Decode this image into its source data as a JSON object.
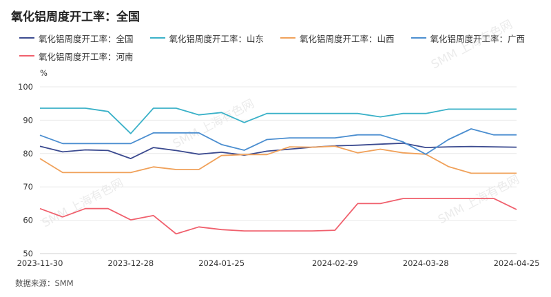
{
  "title": "氧化铝周度开工率：全国",
  "source": "数据来源：SMM",
  "watermark": "SMM 上海有色网",
  "chart_data": {
    "type": "line",
    "y_unit": "%",
    "ylim": [
      50,
      100
    ],
    "y_ticks": [
      50,
      60,
      70,
      80,
      90,
      100
    ],
    "grid": true,
    "legend_position": "top",
    "x": [
      "2023-11-30",
      "2023-12-07",
      "2023-12-14",
      "2023-12-21",
      "2023-12-28",
      "2024-01-04",
      "2024-01-11",
      "2024-01-18",
      "2024-01-25",
      "2024-02-01",
      "2024-02-08",
      "2024-02-15",
      "2024-02-22",
      "2024-02-29",
      "2024-03-07",
      "2024-03-14",
      "2024-03-21",
      "2024-03-28",
      "2024-04-04",
      "2024-04-11",
      "2024-04-18",
      "2024-04-25"
    ],
    "x_tick_labels": [
      "2023-11-30",
      "2023-12-28",
      "2024-01-25",
      "2024-02-29",
      "2024-03-28",
      "2024-04-25"
    ],
    "series": [
      {
        "name": "氧化铝周度开工率：全国",
        "color": "#3b4a8f",
        "values": [
          82.2,
          80.5,
          81.1,
          80.9,
          78.5,
          81.8,
          80.9,
          79.8,
          80.4,
          79.5,
          80.7,
          81.3,
          81.9,
          82.3,
          82.5,
          82.8,
          83.1,
          81.8,
          82.0,
          82.1,
          82.0,
          81.9
        ]
      },
      {
        "name": "氧化铝周度开工率：山东",
        "color": "#3ab1c8",
        "values": [
          93.6,
          93.6,
          93.6,
          92.6,
          86.0,
          93.6,
          93.6,
          91.6,
          92.3,
          89.3,
          92.0,
          92.0,
          92.0,
          92.0,
          92.0,
          91.0,
          92.0,
          92.0,
          93.3,
          93.3,
          93.3,
          93.3
        ]
      },
      {
        "name": "氧化铝周度开工率：山西",
        "color": "#f0a15a",
        "values": [
          78.5,
          74.3,
          74.3,
          74.3,
          74.3,
          76.0,
          75.2,
          75.2,
          79.4,
          79.7,
          79.7,
          82.0,
          81.9,
          82.2,
          80.2,
          81.3,
          80.2,
          79.8,
          76.1,
          74.1,
          74.1,
          74.1
        ]
      },
      {
        "name": "氧化铝周度开工率：广西",
        "color": "#4b8ed0",
        "values": [
          85.5,
          83.0,
          83.0,
          83.0,
          83.0,
          86.2,
          86.2,
          86.2,
          82.7,
          81.0,
          84.2,
          84.7,
          84.7,
          84.7,
          85.6,
          85.6,
          83.5,
          79.8,
          84.2,
          87.4,
          85.6,
          85.6
        ]
      },
      {
        "name": "氧化铝周度开工率：河南",
        "color": "#f0606d",
        "values": [
          63.5,
          61.0,
          63.5,
          63.5,
          60.1,
          61.4,
          55.9,
          58.0,
          57.2,
          56.8,
          56.8,
          56.8,
          56.8,
          57.0,
          65.0,
          65.0,
          66.5,
          66.5,
          66.5,
          66.5,
          66.5,
          63.2
        ]
      }
    ]
  }
}
